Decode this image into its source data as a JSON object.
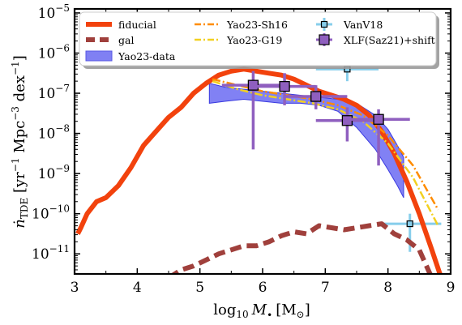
{
  "chart_data": {
    "type": "line",
    "xlabel_parts": {
      "pre": "log",
      "sub": "10",
      "var": "M",
      "bullet": "•",
      "unit": "[M",
      "odot": "⊙",
      "close": "]"
    },
    "ylabel_parts": {
      "n": "ṅ",
      "sub": "TDE",
      "rest": " [yr",
      "exp1": "−1",
      "mpc": " Mpc",
      "exp2": "−3",
      "dex": " dex",
      "exp3": "−1",
      "close": "]"
    },
    "xlim": [
      3,
      9
    ],
    "ylim_log10": [
      -11.5,
      -4.9
    ],
    "y_scale": "log",
    "x_ticks": [
      3,
      4,
      5,
      6,
      7,
      8,
      9
    ],
    "y_tick_exponents": [
      -11,
      -10,
      -9,
      -8,
      -7,
      -6,
      -5
    ],
    "y_tick_base": "10",
    "legend_position": "top",
    "series": [
      {
        "name": "fiducial",
        "color": "#f2420d",
        "x": [
          3.05,
          3.1,
          3.2,
          3.35,
          3.5,
          3.7,
          3.9,
          4.1,
          4.3,
          4.5,
          4.7,
          4.9,
          5.1,
          5.3,
          5.5,
          5.7,
          5.9,
          6.1,
          6.3,
          6.5,
          6.7,
          6.9,
          7.1,
          7.3,
          7.5,
          7.7,
          7.9,
          8.1,
          8.3,
          8.5,
          8.7,
          8.85
        ],
        "log10_y": [
          -10.5,
          -10.35,
          -10.0,
          -9.7,
          -9.6,
          -9.3,
          -8.85,
          -8.3,
          -7.95,
          -7.6,
          -7.35,
          -7.0,
          -6.75,
          -6.55,
          -6.45,
          -6.4,
          -6.45,
          -6.5,
          -6.55,
          -6.65,
          -6.8,
          -6.95,
          -7.05,
          -7.15,
          -7.3,
          -7.55,
          -7.95,
          -8.5,
          -9.2,
          -10.0,
          -10.9,
          -11.6
        ]
      },
      {
        "name": "gal",
        "color": "#a0403c",
        "x": [
          4.5,
          4.7,
          4.9,
          5.1,
          5.3,
          5.5,
          5.7,
          5.9,
          6.1,
          6.3,
          6.5,
          6.7,
          6.9,
          7.1,
          7.3,
          7.5,
          7.7,
          7.9,
          8.1,
          8.3,
          8.5,
          8.7
        ],
        "log10_y": [
          -11.6,
          -11.4,
          -11.3,
          -11.15,
          -11.0,
          -10.9,
          -10.8,
          -10.8,
          -10.7,
          -10.55,
          -10.45,
          -10.5,
          -10.3,
          -10.35,
          -10.4,
          -10.35,
          -10.3,
          -10.25,
          -10.5,
          -10.65,
          -10.9,
          -11.6
        ]
      },
      {
        "name": "Yao23-Sh16",
        "color": "#ff8c00",
        "x": [
          5.2,
          5.6,
          6.0,
          6.4,
          6.8,
          7.2,
          7.6,
          8.0,
          8.4,
          8.8
        ],
        "log10_y": [
          -6.65,
          -6.8,
          -6.95,
          -7.05,
          -7.15,
          -7.3,
          -7.55,
          -8.05,
          -8.8,
          -9.9
        ]
      },
      {
        "name": "Yao23-G19",
        "color": "#f2d020",
        "x": [
          5.2,
          5.6,
          6.0,
          6.4,
          6.8,
          7.2,
          7.6,
          8.0,
          8.4,
          8.8
        ],
        "log10_y": [
          -6.7,
          -6.9,
          -7.05,
          -7.15,
          -7.25,
          -7.4,
          -7.7,
          -8.25,
          -9.1,
          -10.3
        ]
      }
    ],
    "bands": [
      {
        "name": "Yao23-data",
        "color": "#6b6bf2",
        "x": [
          5.15,
          5.4,
          5.7,
          6.0,
          6.3,
          6.6,
          6.9,
          7.2,
          7.5,
          7.8,
          8.0,
          8.15,
          8.25
        ],
        "log10_low": [
          -7.25,
          -7.2,
          -7.15,
          -7.2,
          -7.25,
          -7.25,
          -7.3,
          -7.45,
          -7.85,
          -8.4,
          -8.9,
          -9.3,
          -9.6
        ],
        "log10_high": [
          -6.75,
          -6.85,
          -6.9,
          -6.95,
          -7.0,
          -7.05,
          -7.1,
          -7.15,
          -7.25,
          -7.55,
          -7.9,
          -8.3,
          -8.6
        ]
      }
    ],
    "errorbar_series": [
      {
        "name": "VanV18",
        "color": "#87ceeb",
        "points": [
          {
            "x": 7.35,
            "log10_y": -6.4,
            "x_err": [
              6.85,
              7.85
            ],
            "log10_y_err": [
              -6.7,
              -6.25
            ]
          },
          {
            "x": 8.35,
            "log10_y": -10.25,
            "x_err": [
              7.85,
              8.85
            ],
            "log10_y_err": [
              -10.95,
              -10.0
            ]
          }
        ]
      },
      {
        "name": "XLF(Saz21)+shift",
        "color": "#8f5fbf",
        "points": [
          {
            "x": 5.85,
            "log10_y": -6.8,
            "x_err": [
              5.35,
              6.35
            ],
            "log10_y_err": [
              -8.4,
              -6.45
            ]
          },
          {
            "x": 6.35,
            "log10_y": -6.83,
            "x_err": [
              5.85,
              6.85
            ],
            "log10_y_err": [
              -7.3,
              -6.5
            ]
          },
          {
            "x": 6.85,
            "log10_y": -7.08,
            "x_err": [
              6.35,
              7.35
            ],
            "log10_y_err": [
              -7.4,
              -6.8
            ]
          },
          {
            "x": 7.35,
            "log10_y": -7.68,
            "x_err": [
              6.85,
              7.85
            ],
            "log10_y_err": [
              -8.2,
              -7.35
            ]
          },
          {
            "x": 7.85,
            "log10_y": -7.65,
            "x_err": [
              7.35,
              8.35
            ],
            "log10_y_err": [
              -8.8,
              -7.4
            ]
          }
        ]
      }
    ]
  }
}
